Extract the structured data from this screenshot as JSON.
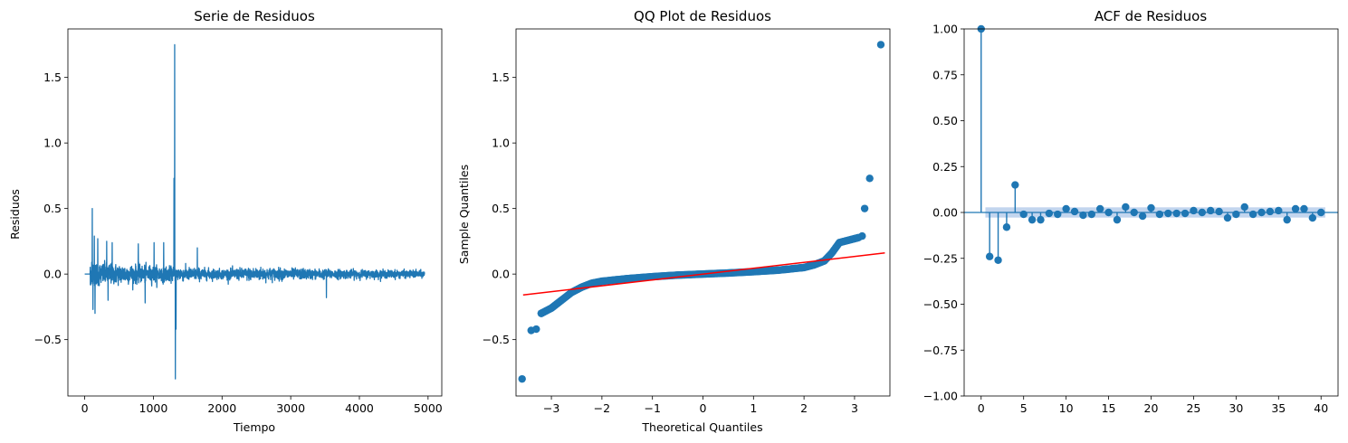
{
  "figure": {
    "charts": [
      {
        "title": "Serie de Residuos",
        "xlabel": "Tiempo",
        "ylabel": "Residuos"
      },
      {
        "title": "QQ Plot de Residuos",
        "xlabel": "Theoretical Quantiles",
        "ylabel": "Sample Quantiles"
      },
      {
        "title": "ACF de Residuos",
        "xlabel": "",
        "ylabel": ""
      }
    ]
  },
  "colors": {
    "series": "#1f77b4",
    "reference_line": "#ff0000",
    "confidence_band": "#aec7e8"
  },
  "chart_data": [
    {
      "type": "line",
      "title": "Serie de Residuos",
      "xlabel": "Tiempo",
      "ylabel": "Residuos",
      "xlim": [
        -245,
        5200
      ],
      "ylim": [
        -0.93,
        1.87
      ],
      "xticks": [
        0,
        1000,
        2000,
        3000,
        4000,
        5000
      ],
      "xtick_labels": [
        "0",
        "1000",
        "2000",
        "3000",
        "4000",
        "5000"
      ],
      "yticks": [
        -0.5,
        0.0,
        0.5,
        1.0,
        1.5
      ],
      "ytick_labels": [
        "−0.5",
        "0.0",
        "0.5",
        "1.0",
        "1.5"
      ],
      "n_points": 4950,
      "flat_until": 80,
      "spikes": [
        {
          "x": 110,
          "y": 0.5
        },
        {
          "x": 120,
          "y": -0.27
        },
        {
          "x": 140,
          "y": 0.29
        },
        {
          "x": 150,
          "y": -0.3
        },
        {
          "x": 190,
          "y": 0.27
        },
        {
          "x": 320,
          "y": 0.25
        },
        {
          "x": 340,
          "y": -0.2
        },
        {
          "x": 400,
          "y": 0.24
        },
        {
          "x": 780,
          "y": 0.23
        },
        {
          "x": 880,
          "y": -0.22
        },
        {
          "x": 1010,
          "y": 0.24
        },
        {
          "x": 1150,
          "y": 0.24
        },
        {
          "x": 1310,
          "y": 1.75
        },
        {
          "x": 1320,
          "y": -0.8
        },
        {
          "x": 1300,
          "y": 0.73
        },
        {
          "x": 1330,
          "y": -0.42
        },
        {
          "x": 1640,
          "y": 0.2
        },
        {
          "x": 3520,
          "y": -0.18
        }
      ],
      "noise_envelope": [
        {
          "x": 80,
          "a": 0.1
        },
        {
          "x": 600,
          "a": 0.08
        },
        {
          "x": 1300,
          "a": 0.06
        },
        {
          "x": 2000,
          "a": 0.04
        },
        {
          "x": 2500,
          "a": 0.055
        },
        {
          "x": 3000,
          "a": 0.045
        },
        {
          "x": 4000,
          "a": 0.035
        },
        {
          "x": 4950,
          "a": 0.03
        }
      ]
    },
    {
      "type": "scatter",
      "title": "QQ Plot de Residuos",
      "xlabel": "Theoretical Quantiles",
      "ylabel": "Sample Quantiles",
      "xlim": [
        -3.7,
        3.7
      ],
      "ylim": [
        -0.93,
        1.87
      ],
      "xticks": [
        -3,
        -2,
        -1,
        0,
        1,
        2,
        3
      ],
      "xtick_labels": [
        "−3",
        "−2",
        "−1",
        "0",
        "1",
        "2",
        "3"
      ],
      "yticks": [
        -0.5,
        0.0,
        0.5,
        1.0,
        1.5
      ],
      "ytick_labels": [
        "−0.5",
        "0.0",
        "0.5",
        "1.0",
        "1.5"
      ],
      "curve_points": [
        {
          "x": -3.2,
          "y": -0.3
        },
        {
          "x": -3.0,
          "y": -0.26
        },
        {
          "x": -2.8,
          "y": -0.2
        },
        {
          "x": -2.6,
          "y": -0.14
        },
        {
          "x": -2.4,
          "y": -0.1
        },
        {
          "x": -2.2,
          "y": -0.07
        },
        {
          "x": -2.0,
          "y": -0.055
        },
        {
          "x": -1.5,
          "y": -0.035
        },
        {
          "x": -1.0,
          "y": -0.02
        },
        {
          "x": -0.5,
          "y": -0.008
        },
        {
          "x": 0.0,
          "y": 0.0
        },
        {
          "x": 0.5,
          "y": 0.008
        },
        {
          "x": 1.0,
          "y": 0.018
        },
        {
          "x": 1.5,
          "y": 0.03
        },
        {
          "x": 2.0,
          "y": 0.05
        },
        {
          "x": 2.2,
          "y": 0.07
        },
        {
          "x": 2.4,
          "y": 0.1
        },
        {
          "x": 2.55,
          "y": 0.16
        },
        {
          "x": 2.7,
          "y": 0.24
        },
        {
          "x": 2.9,
          "y": 0.26
        },
        {
          "x": 3.1,
          "y": 0.28
        }
      ],
      "outliers": [
        {
          "x": -3.58,
          "y": -0.8
        },
        {
          "x": -3.4,
          "y": -0.43
        },
        {
          "x": -3.3,
          "y": -0.42
        },
        {
          "x": -3.2,
          "y": -0.3
        },
        {
          "x": 3.2,
          "y": 0.5
        },
        {
          "x": 3.15,
          "y": 0.29
        },
        {
          "x": 3.3,
          "y": 0.73
        },
        {
          "x": 3.52,
          "y": 1.75
        }
      ],
      "reference_line": {
        "x": [
          -3.7,
          3.7
        ],
        "y": [
          -0.165,
          0.165
        ]
      }
    },
    {
      "type": "stem",
      "title": "ACF de Residuos",
      "xlim": [
        -2,
        42
      ],
      "ylim": [
        -1.0,
        1.0
      ],
      "xticks": [
        0,
        5,
        10,
        15,
        20,
        25,
        30,
        35,
        40
      ],
      "xtick_labels": [
        "0",
        "5",
        "10",
        "15",
        "20",
        "25",
        "30",
        "35",
        "40"
      ],
      "yticks": [
        -1.0,
        -0.75,
        -0.5,
        -0.25,
        0.0,
        0.25,
        0.5,
        0.75,
        1.0
      ],
      "ytick_labels": [
        "−1.00",
        "−0.75",
        "−0.50",
        "−0.25",
        "0.00",
        "0.25",
        "0.50",
        "0.75",
        "1.00"
      ],
      "lags": [
        0,
        1,
        2,
        3,
        4,
        5,
        6,
        7,
        8,
        9,
        10,
        11,
        12,
        13,
        14,
        15,
        16,
        17,
        18,
        19,
        20,
        21,
        22,
        23,
        24,
        25,
        26,
        27,
        28,
        29,
        30,
        31,
        32,
        33,
        34,
        35,
        36,
        37,
        38,
        39,
        40
      ],
      "values": [
        1.0,
        -0.24,
        -0.26,
        -0.08,
        0.15,
        -0.01,
        -0.04,
        -0.04,
        -0.005,
        -0.01,
        0.02,
        0.005,
        -0.015,
        -0.01,
        0.02,
        0.0,
        -0.04,
        0.03,
        0.0,
        -0.02,
        0.025,
        -0.01,
        -0.005,
        -0.005,
        -0.005,
        0.01,
        0.0,
        0.01,
        0.005,
        -0.03,
        -0.01,
        0.03,
        -0.01,
        0.0,
        0.005,
        0.01,
        -0.04,
        0.02,
        0.02,
        -0.03,
        0.0
      ],
      "confidence_band": 0.028
    }
  ]
}
